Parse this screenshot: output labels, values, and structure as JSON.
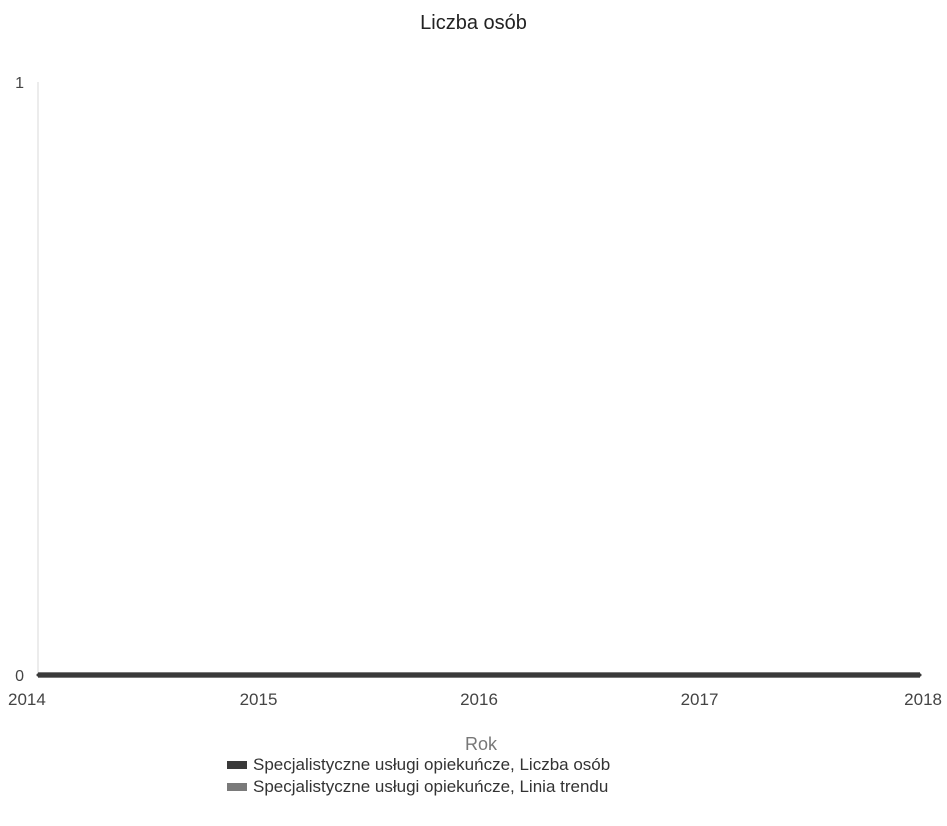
{
  "chart_data": {
    "type": "line",
    "title": "Liczba osób",
    "xlabel": "Rok",
    "ylabel": "",
    "x": [
      2014,
      2015,
      2016,
      2017,
      2018
    ],
    "x_tick_labels": [
      "2014",
      "2015",
      "2016",
      "2017",
      "2018"
    ],
    "y_tick_labels": [
      "0",
      "1"
    ],
    "xlim": [
      2014,
      2018
    ],
    "ylim": [
      0,
      1
    ],
    "grid": false,
    "legend_position": "bottom",
    "series": [
      {
        "name": "Specjalistyczne usługi opiekuńcze, Liczba osób",
        "values": [
          0,
          0,
          0,
          0,
          0
        ],
        "color": "#3a3a3a"
      },
      {
        "name": "Specjalistyczne usługi opiekuńcze, Linia trendu",
        "values": [
          0,
          0,
          0,
          0,
          0
        ],
        "color": "#7a7a7a"
      }
    ]
  }
}
